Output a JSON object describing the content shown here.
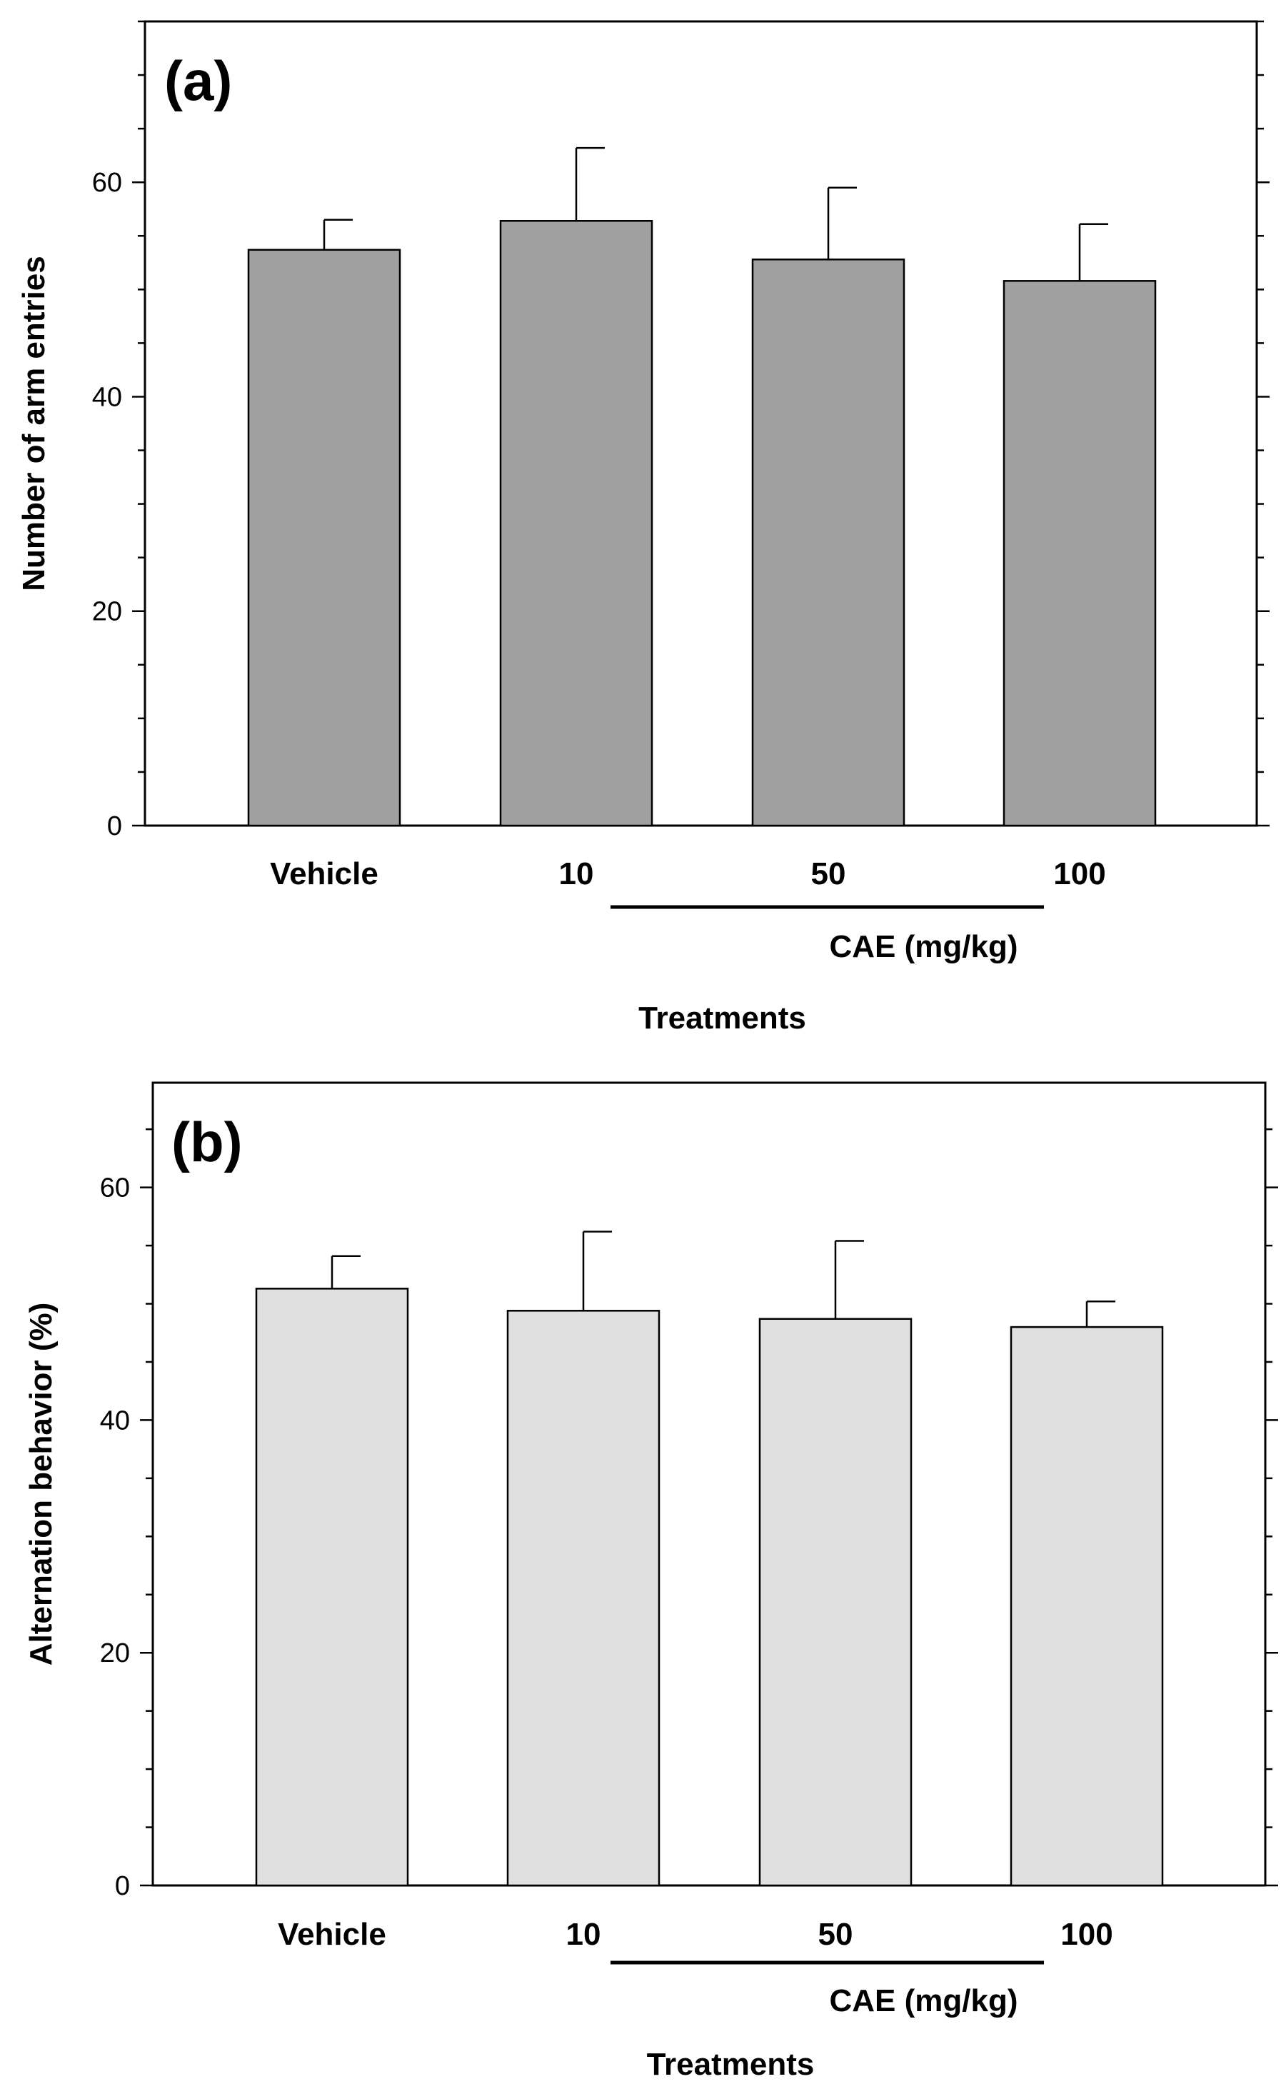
{
  "chart_data": [
    {
      "type": "bar",
      "panel_label": "(a)",
      "categories": [
        "Vehicle",
        "10",
        "50",
        "100"
      ],
      "values": [
        53.7,
        56.4,
        52.8,
        50.8
      ],
      "errors": [
        2.8,
        6.8,
        6.7,
        5.3
      ],
      "ylabel": "Number of arm entries",
      "xlabel": "Treatments",
      "group_label": "CAE (mg/kg)",
      "ylim": [
        0,
        75
      ],
      "yticks": [
        0,
        20,
        40,
        60
      ],
      "bar_color": "#a0a0a0"
    },
    {
      "type": "bar",
      "panel_label": "(b)",
      "categories": [
        "Vehicle",
        "10",
        "50",
        "100"
      ],
      "values": [
        51.3,
        49.4,
        48.7,
        48.0
      ],
      "errors": [
        2.8,
        6.8,
        6.7,
        2.2
      ],
      "ylabel": "Alternation behavior (%)",
      "xlabel": "Treatments",
      "group_label": "CAE (mg/kg)",
      "ylim": [
        0,
        69
      ],
      "yticks": [
        0,
        20,
        40,
        60
      ],
      "bar_color": "#e0e0e0"
    }
  ]
}
